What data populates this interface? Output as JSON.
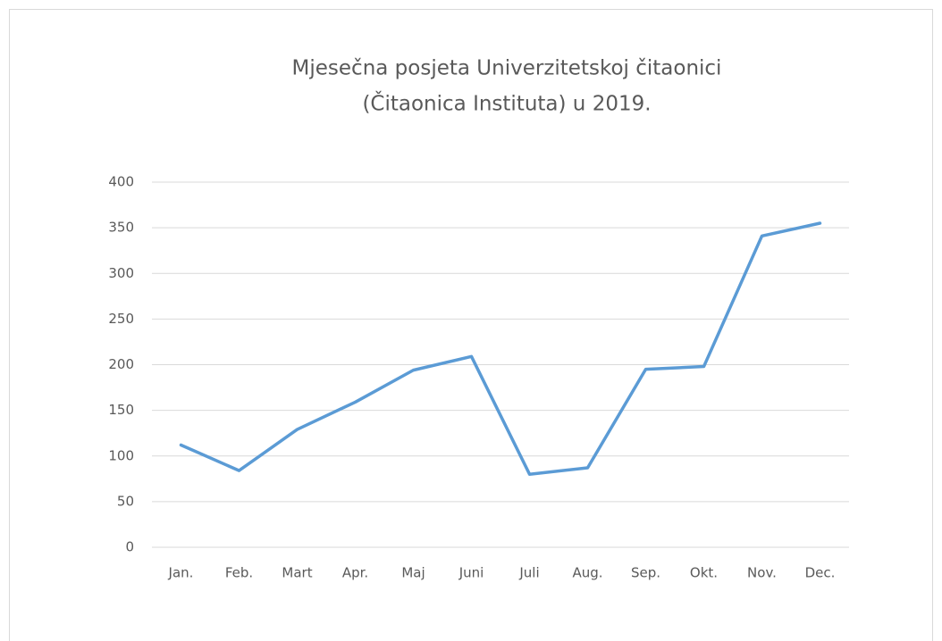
{
  "chart_data": {
    "type": "line",
    "title": [
      "Mjesečna posjeta Univerzitetskoj čitaonici",
      "(Čitaonica Instituta) u 2019."
    ],
    "categories": [
      "Jan.",
      "Feb.",
      "Mart",
      "Apr.",
      "Maj",
      "Juni",
      "Juli",
      "Aug.",
      "Sep.",
      "Okt.",
      "Nov.",
      "Dec."
    ],
    "series": [
      {
        "color": "#5b9bd5",
        "values": [
          112,
          84,
          129,
          159,
          194,
          209,
          80,
          87,
          195,
          198,
          341,
          355
        ]
      }
    ],
    "ylim": [
      0,
      400
    ],
    "yticks": [
      0,
      50,
      100,
      150,
      200,
      250,
      300,
      350,
      400
    ],
    "grid": true
  }
}
